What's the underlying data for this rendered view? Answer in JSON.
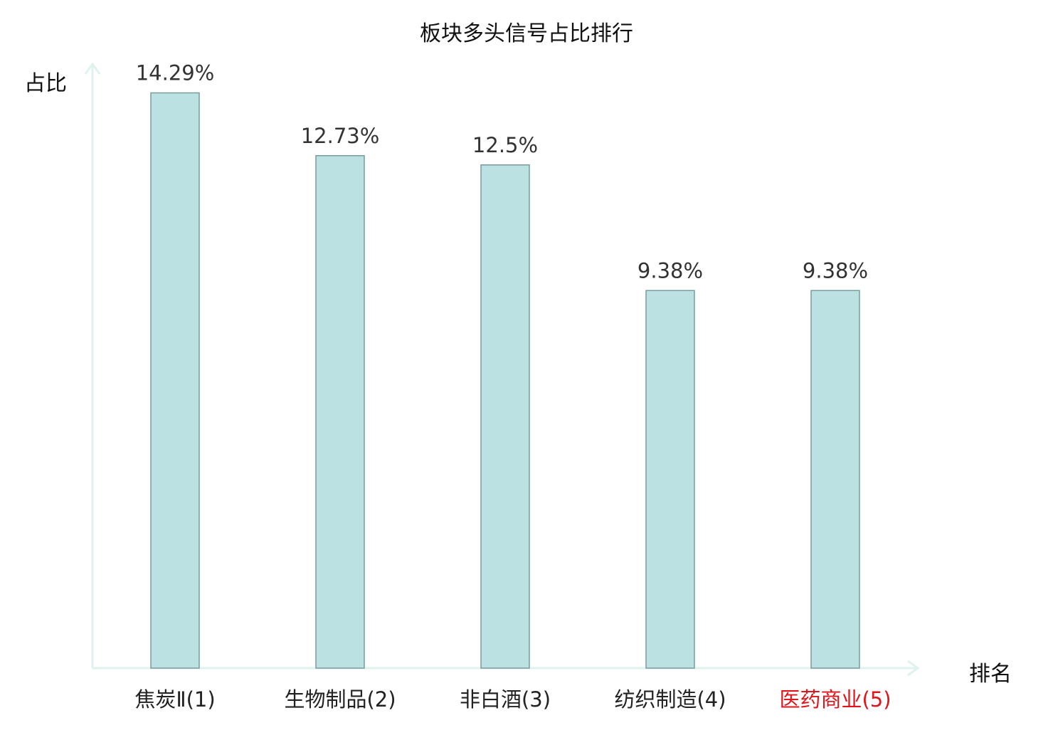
{
  "chart_data": {
    "type": "bar",
    "title": "板块多头信号占比排行",
    "ylabel": "占比",
    "xlabel": "排名",
    "categories": [
      "焦炭Ⅱ(1)",
      "生物制品(2)",
      "非白酒(3)",
      "纺织制造(4)",
      "医药商业(5)"
    ],
    "values": [
      14.29,
      12.73,
      12.5,
      9.38,
      9.38
    ],
    "value_labels": [
      "14.29%",
      "12.73%",
      "12.5%",
      "9.38%",
      "9.38%"
    ],
    "highlight_index": 4,
    "ylim": [
      0,
      15
    ],
    "grid": false,
    "legend": "none",
    "colors": {
      "bar_fill": "#bce1e2",
      "bar_stroke": "#7a9b9c",
      "axis": "#dff2ef",
      "label_text": "#333333",
      "category_text": "#222222",
      "highlight_text": "#e0151b"
    }
  }
}
